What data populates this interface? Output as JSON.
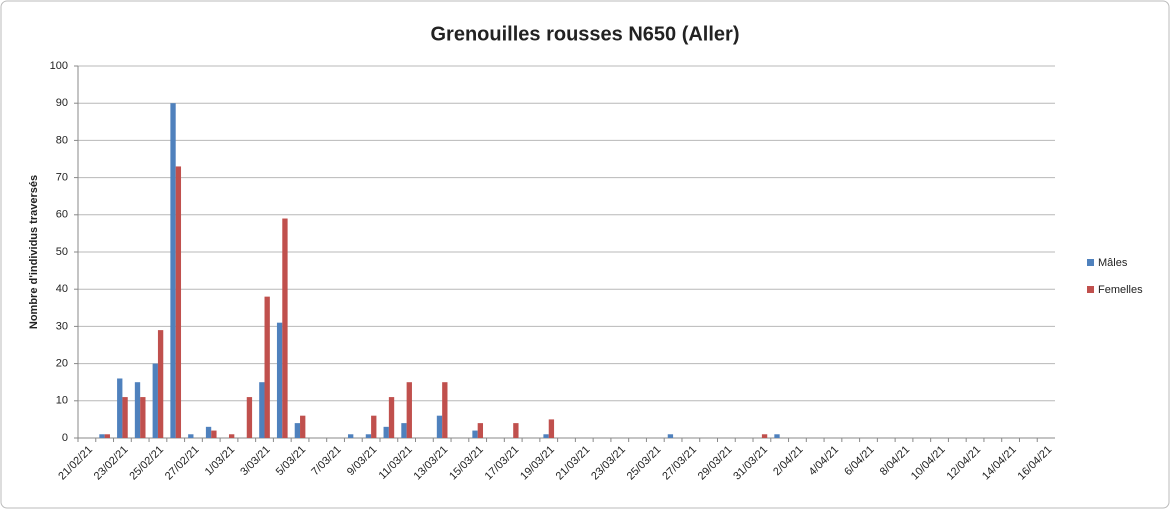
{
  "chart_data": {
    "type": "bar",
    "title": "Grenouilles rousses N650 (Aller)",
    "y_label": "Nombre d'individus traversés",
    "categories": [
      "21/02/21",
      null,
      "23/02/21",
      null,
      "25/02/21",
      null,
      "27/02/21",
      null,
      "1/03/21",
      null,
      "3/03/21",
      null,
      "5/03/21",
      null,
      "7/03/21",
      null,
      "9/03/21",
      null,
      "11/03/21",
      null,
      "13/03/21",
      null,
      "15/03/21",
      null,
      "17/03/21",
      null,
      "19/03/21",
      null,
      "21/03/21",
      null,
      "23/03/21",
      null,
      "25/03/21",
      null,
      "27/03/21",
      null,
      "29/03/21",
      null,
      "31/03/21",
      null,
      "2/04/21",
      null,
      "4/04/21",
      null,
      "6/04/21",
      null,
      "8/04/21",
      null,
      "10/04/21",
      null,
      "12/04/21",
      null,
      "14/04/21",
      null,
      "16/04/21"
    ],
    "series": [
      {
        "name": "Mâles",
        "color": "#4f81bd",
        "values": [
          0,
          1,
          16,
          15,
          20,
          90,
          1,
          3,
          0,
          0,
          15,
          31,
          4,
          0,
          0,
          1,
          1,
          3,
          4,
          0,
          6,
          0,
          2,
          0,
          0,
          0,
          1,
          0,
          0,
          0,
          0,
          0,
          0,
          1,
          0,
          0,
          0,
          0,
          0,
          1,
          0,
          0,
          0,
          0,
          0,
          0,
          0,
          0,
          0,
          0,
          0,
          0,
          0,
          0,
          0
        ]
      },
      {
        "name": "Femelles",
        "color": "#c0504d",
        "values": [
          0,
          1,
          11,
          11,
          29,
          73,
          0,
          2,
          1,
          11,
          38,
          59,
          6,
          0,
          0,
          0,
          6,
          11,
          15,
          0,
          15,
          0,
          4,
          0,
          4,
          0,
          5,
          0,
          0,
          0,
          0,
          0,
          0,
          0,
          0,
          0,
          0,
          0,
          1,
          0,
          0,
          0,
          0,
          0,
          0,
          0,
          0,
          0,
          0,
          0,
          0,
          0,
          0,
          0,
          0
        ]
      }
    ],
    "ylim": [
      0,
      100
    ],
    "yticks": [
      0,
      10,
      20,
      30,
      40,
      50,
      60,
      70,
      80,
      90,
      100
    ],
    "grid": true,
    "legend": "right"
  }
}
